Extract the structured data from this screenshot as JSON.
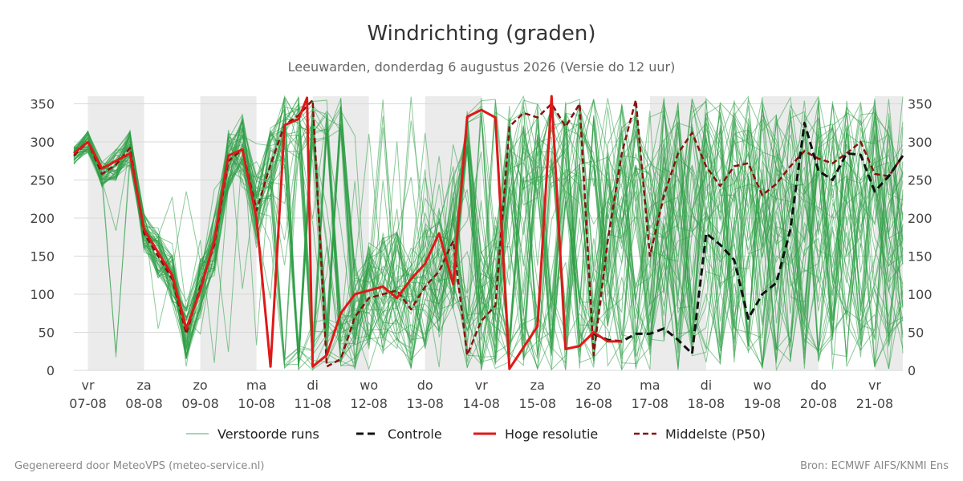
{
  "header": {
    "title": "Windrichting (graden)",
    "subtitle": "Leeuwarden, donderdag  6 augustus 2026 (Versie do 12 uur)"
  },
  "footer": {
    "left": "Gegenereerd door MeteoVPS (meteo-service.nl)",
    "right": "Bron: ECMWF AIFS/KNMI Ens"
  },
  "colors": {
    "ensemble": "#2e9e45",
    "control": "#111111",
    "hires": "#e01818",
    "median": "#8b1010",
    "weekend_shade": "#ebebeb",
    "grid": "#d8d8d8"
  },
  "chart_data": {
    "type": "line",
    "title": "Windrichting (graden)",
    "ylim": [
      0,
      360
    ],
    "yticks": [
      0,
      50,
      100,
      150,
      200,
      250,
      300,
      350
    ],
    "x_range_days": [
      6.75,
      21.5
    ],
    "x_ticks": [
      {
        "day": 7,
        "weekday": "vr",
        "date": "07-08"
      },
      {
        "day": 8,
        "weekday": "za",
        "date": "08-08"
      },
      {
        "day": 9,
        "weekday": "zo",
        "date": "09-08"
      },
      {
        "day": 10,
        "weekday": "ma",
        "date": "10-08"
      },
      {
        "day": 11,
        "weekday": "di",
        "date": "11-08"
      },
      {
        "day": 12,
        "weekday": "wo",
        "date": "12-08"
      },
      {
        "day": 13,
        "weekday": "do",
        "date": "13-08"
      },
      {
        "day": 14,
        "weekday": "vr",
        "date": "14-08"
      },
      {
        "day": 15,
        "weekday": "za",
        "date": "15-08"
      },
      {
        "day": 16,
        "weekday": "zo",
        "date": "16-08"
      },
      {
        "day": 17,
        "weekday": "ma",
        "date": "17-08"
      },
      {
        "day": 18,
        "weekday": "di",
        "date": "18-08"
      },
      {
        "day": 19,
        "weekday": "wo",
        "date": "19-08"
      },
      {
        "day": 20,
        "weekday": "do",
        "date": "20-08"
      },
      {
        "day": 21,
        "weekday": "vr",
        "date": "21-08"
      }
    ],
    "shaded_days": [
      [
        7.0,
        8.0
      ],
      [
        9.0,
        10.0
      ],
      [
        11.0,
        12.0
      ],
      [
        13.0,
        14.0
      ],
      [
        17.0,
        18.0
      ],
      [
        19.0,
        20.0
      ],
      [
        21.0,
        21.5
      ]
    ],
    "legend": {
      "placement": "bottom",
      "items": [
        {
          "label": "Verstoorde runs",
          "style": "ensemble"
        },
        {
          "label": "Controle",
          "style": "control"
        },
        {
          "label": "Hoge resolutie",
          "style": "hires"
        },
        {
          "label": "Middelste (P50)",
          "style": "median"
        }
      ]
    },
    "series": [
      {
        "name": "Hoge resolutie",
        "x": [
          6.75,
          7.0,
          7.25,
          7.5,
          7.75,
          8.0,
          8.25,
          8.5,
          8.75,
          9.0,
          9.25,
          9.5,
          9.75,
          10.0,
          10.25,
          10.5,
          10.75,
          10.9,
          11.0,
          11.25,
          11.5,
          11.75,
          12.0,
          12.25,
          12.5,
          12.75,
          13.0,
          13.25,
          13.5,
          13.75,
          14.0,
          14.25,
          14.5,
          14.75,
          15.0,
          15.25,
          15.5,
          15.75,
          16.0,
          16.25,
          16.5
        ],
        "y": [
          285,
          300,
          265,
          275,
          285,
          185,
          155,
          125,
          55,
          105,
          170,
          282,
          290,
          200,
          5,
          322,
          330,
          358,
          5,
          20,
          75,
          100,
          105,
          110,
          95,
          120,
          140,
          180,
          113,
          333,
          342,
          332,
          2,
          30,
          58,
          365,
          28,
          32,
          50,
          38,
          38
        ]
      },
      {
        "name": "Controle",
        "x": [
          16.0,
          16.25,
          16.5,
          16.75,
          17.0,
          17.25,
          17.5,
          17.75,
          18.0,
          18.25,
          18.5,
          18.75,
          19.0,
          19.25,
          19.5,
          19.75,
          20.0,
          20.25,
          20.5,
          20.75,
          21.0,
          21.25,
          21.5
        ],
        "y": [
          48,
          40,
          38,
          48,
          48,
          55,
          40,
          22,
          180,
          165,
          145,
          68,
          100,
          115,
          185,
          325,
          262,
          250,
          285,
          283,
          235,
          255,
          282
        ]
      },
      {
        "name": "Middelste (P50)",
        "x": [
          6.75,
          7.0,
          7.25,
          7.5,
          7.75,
          8.0,
          8.25,
          8.5,
          8.75,
          9.0,
          9.25,
          9.5,
          9.75,
          10.0,
          10.25,
          10.5,
          10.75,
          11.0,
          11.25,
          11.5,
          11.75,
          12.0,
          12.25,
          12.5,
          12.75,
          13.0,
          13.25,
          13.5,
          13.75,
          14.0,
          14.25,
          14.5,
          14.75,
          15.0,
          15.25,
          15.5,
          15.75,
          16.0,
          16.25,
          16.5,
          16.75,
          17.0,
          17.25,
          17.5,
          17.75,
          18.0,
          18.25,
          18.5,
          18.75,
          19.0,
          19.25,
          19.5,
          19.75,
          20.0,
          20.25,
          20.5,
          20.75,
          21.0,
          21.25,
          21.5
        ],
        "y": [
          282,
          300,
          258,
          270,
          292,
          180,
          150,
          120,
          48,
          110,
          165,
          275,
          290,
          210,
          270,
          322,
          335,
          355,
          5,
          15,
          70,
          95,
          100,
          105,
          80,
          110,
          130,
          170,
          20,
          65,
          85,
          320,
          338,
          332,
          350,
          320,
          350,
          20,
          170,
          285,
          355,
          150,
          230,
          285,
          312,
          268,
          242,
          268,
          272,
          230,
          245,
          268,
          288,
          278,
          272,
          285,
          300,
          258,
          255,
          282
        ]
      }
    ],
    "ensemble_member_count": 50
  }
}
